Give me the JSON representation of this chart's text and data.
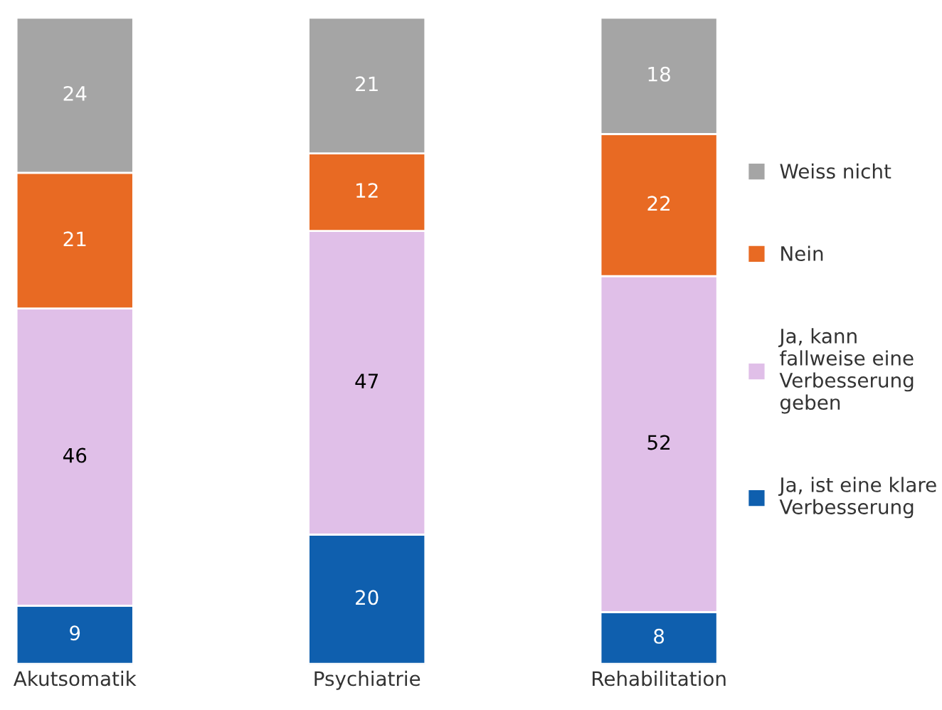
{
  "chart_data": {
    "type": "bar",
    "stacked": true,
    "categories": [
      "Akutsomatik",
      "Psychiatrie",
      "Rehabilitation"
    ],
    "series": [
      {
        "name": "Ja, ist eine klare\nVerbesserung",
        "color": "#0f5fae",
        "values": [
          9,
          20,
          8
        ]
      },
      {
        "name": "Ja, kann\nfallweise eine\nVerbesserung\ngeben",
        "color": "#e0bfe8",
        "values": [
          46,
          47,
          52
        ]
      },
      {
        "name": "Nein",
        "color": "#e86a23",
        "values": [
          21,
          12,
          22
        ]
      },
      {
        "name": "Weiss nicht",
        "color": "#a5a5a5",
        "values": [
          24,
          21,
          18
        ]
      }
    ],
    "data_labels": true,
    "legend": "right",
    "tick_labels": "x",
    "grid": false
  }
}
